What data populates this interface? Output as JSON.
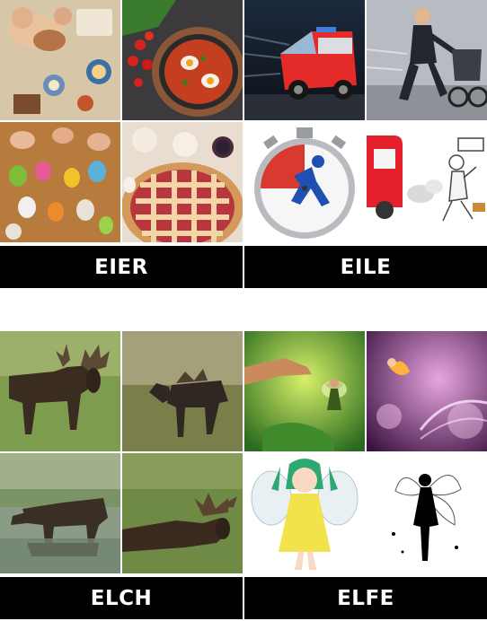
{
  "cards": [
    {
      "word": "EIER",
      "images": [
        "baking-hands-photo",
        "shakshuka-pan-photo",
        "decorated-eggs-photo",
        "lattice-pie-photo"
      ]
    },
    {
      "word": "EILE",
      "images": [
        "speeding-ambulance-photo",
        "running-man-stroller-photo",
        "stopwatch-runner-icon",
        "rushing-to-bus-cartoon"
      ]
    },
    {
      "word": "ELCH",
      "images": [
        "moose-standing-photo",
        "moose-grazing-photo",
        "moose-in-water-photo",
        "moose-lying-photo"
      ]
    },
    {
      "word": "ELFE",
      "images": [
        "fairy-on-finger-photo",
        "purple-fairy-photo",
        "anime-green-fairy-drawing",
        "fairy-silhouette-icon"
      ]
    }
  ]
}
